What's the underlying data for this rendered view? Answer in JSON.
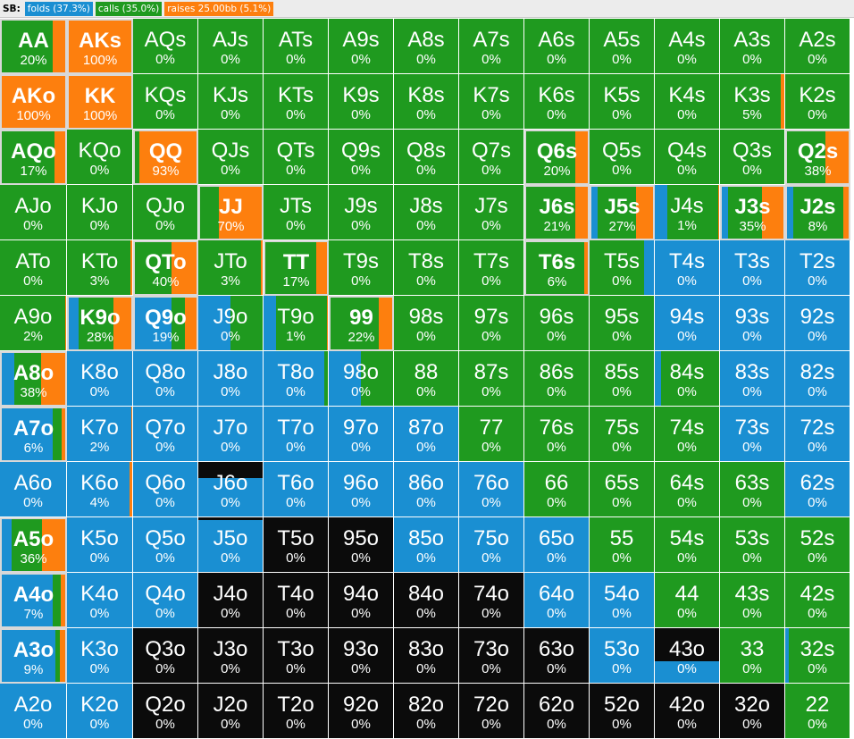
{
  "header": {
    "label": "SB:",
    "badges": [
      {
        "text": "folds (37.3%)",
        "color": "#1a8fd2"
      },
      {
        "text": "calls (35.0%)",
        "color": "#1f9a1f"
      },
      {
        "text": "raises 25.00bb (5.1%)",
        "color": "#fd7f0e"
      }
    ]
  },
  "colors": {
    "fold": "#1a8fd2",
    "call": "#1f9a1f",
    "raise": "#fd7f0e",
    "empty": "#0b0b0b"
  },
  "grid": [
    [
      {
        "h": "AA",
        "p": "20%",
        "s": "c:0.8,r:0.2",
        "b": 1
      },
      {
        "h": "AKs",
        "p": "100%",
        "s": "r:1",
        "b": 1
      },
      {
        "h": "AQs",
        "p": "0%",
        "s": "c:1"
      },
      {
        "h": "AJs",
        "p": "0%",
        "s": "c:1"
      },
      {
        "h": "ATs",
        "p": "0%",
        "s": "c:1"
      },
      {
        "h": "A9s",
        "p": "0%",
        "s": "c:1"
      },
      {
        "h": "A8s",
        "p": "0%",
        "s": "c:1"
      },
      {
        "h": "A7s",
        "p": "0%",
        "s": "c:1"
      },
      {
        "h": "A6s",
        "p": "0%",
        "s": "c:1"
      },
      {
        "h": "A5s",
        "p": "0%",
        "s": "c:1"
      },
      {
        "h": "A4s",
        "p": "0%",
        "s": "c:1"
      },
      {
        "h": "A3s",
        "p": "0%",
        "s": "c:1"
      },
      {
        "h": "A2s",
        "p": "0%",
        "s": "c:1"
      }
    ],
    [
      {
        "h": "AKo",
        "p": "100%",
        "s": "r:1",
        "b": 1
      },
      {
        "h": "KK",
        "p": "100%",
        "s": "r:1",
        "b": 1
      },
      {
        "h": "KQs",
        "p": "0%",
        "s": "c:1"
      },
      {
        "h": "KJs",
        "p": "0%",
        "s": "c:1"
      },
      {
        "h": "KTs",
        "p": "0%",
        "s": "c:1"
      },
      {
        "h": "K9s",
        "p": "0%",
        "s": "c:1"
      },
      {
        "h": "K8s",
        "p": "0%",
        "s": "c:1"
      },
      {
        "h": "K7s",
        "p": "0%",
        "s": "c:1"
      },
      {
        "h": "K6s",
        "p": "0%",
        "s": "c:1"
      },
      {
        "h": "K5s",
        "p": "0%",
        "s": "c:1"
      },
      {
        "h": "K4s",
        "p": "0%",
        "s": "c:1"
      },
      {
        "h": "K3s",
        "p": "5%",
        "s": "c:0.95,r:0.05"
      },
      {
        "h": "K2s",
        "p": "0%",
        "s": "c:1"
      }
    ],
    [
      {
        "h": "AQo",
        "p": "17%",
        "s": "c:0.83,r:0.17",
        "b": 1
      },
      {
        "h": "KQo",
        "p": "0%",
        "s": "c:1"
      },
      {
        "h": "QQ",
        "p": "93%",
        "s": "c:0.07,r:0.93",
        "b": 1
      },
      {
        "h": "QJs",
        "p": "0%",
        "s": "c:1"
      },
      {
        "h": "QTs",
        "p": "0%",
        "s": "c:1"
      },
      {
        "h": "Q9s",
        "p": "0%",
        "s": "c:1"
      },
      {
        "h": "Q8s",
        "p": "0%",
        "s": "c:1"
      },
      {
        "h": "Q7s",
        "p": "0%",
        "s": "c:1"
      },
      {
        "h": "Q6s",
        "p": "20%",
        "s": "c:0.8,r:0.2",
        "b": 1
      },
      {
        "h": "Q5s",
        "p": "0%",
        "s": "c:1"
      },
      {
        "h": "Q4s",
        "p": "0%",
        "s": "c:1"
      },
      {
        "h": "Q3s",
        "p": "0%",
        "s": "c:1"
      },
      {
        "h": "Q2s",
        "p": "38%",
        "s": "c:0.62,r:0.38",
        "b": 1
      }
    ],
    [
      {
        "h": "AJo",
        "p": "0%",
        "s": "c:1"
      },
      {
        "h": "KJo",
        "p": "0%",
        "s": "c:1"
      },
      {
        "h": "QJo",
        "p": "0%",
        "s": "c:1"
      },
      {
        "h": "JJ",
        "p": "70%",
        "s": "c:0.3,r:0.7",
        "b": 1
      },
      {
        "h": "JTs",
        "p": "0%",
        "s": "c:1"
      },
      {
        "h": "J9s",
        "p": "0%",
        "s": "c:1"
      },
      {
        "h": "J8s",
        "p": "0%",
        "s": "c:1"
      },
      {
        "h": "J7s",
        "p": "0%",
        "s": "c:1"
      },
      {
        "h": "J6s",
        "p": "21%",
        "s": "c:0.79,r:0.21",
        "b": 1
      },
      {
        "h": "J5s",
        "p": "27%",
        "s": "f:0.1,c:0.63,r:0.27",
        "b": 1
      },
      {
        "h": "J4s",
        "p": "1%",
        "s": "f:0.2,c:0.79,r:0.01"
      },
      {
        "h": "J3s",
        "p": "35%",
        "s": "f:0.1,c:0.55,r:0.35",
        "b": 1
      },
      {
        "h": "J2s",
        "p": "8%",
        "s": "f:0.1,c:0.82,r:0.08",
        "b": 1
      }
    ],
    [
      {
        "h": "ATo",
        "p": "0%",
        "s": "c:1"
      },
      {
        "h": "KTo",
        "p": "3%",
        "s": "c:0.97,r:0.03"
      },
      {
        "h": "QTo",
        "p": "40%",
        "s": "c:0.6,r:0.4",
        "b": 1
      },
      {
        "h": "JTo",
        "p": "3%",
        "s": "c:0.97,r:0.03"
      },
      {
        "h": "TT",
        "p": "17%",
        "s": "c:0.83,r:0.17",
        "b": 1
      },
      {
        "h": "T9s",
        "p": "0%",
        "s": "c:1"
      },
      {
        "h": "T8s",
        "p": "0%",
        "s": "c:1"
      },
      {
        "h": "T7s",
        "p": "0%",
        "s": "c:1"
      },
      {
        "h": "T6s",
        "p": "6%",
        "s": "c:0.94,r:0.06",
        "b": 1
      },
      {
        "h": "T5s",
        "p": "0%",
        "s": "c:0.85,f:0.15"
      },
      {
        "h": "T4s",
        "p": "0%",
        "s": "f:1"
      },
      {
        "h": "T3s",
        "p": "0%",
        "s": "f:1"
      },
      {
        "h": "T2s",
        "p": "0%",
        "s": "f:1"
      }
    ],
    [
      {
        "h": "A9o",
        "p": "2%",
        "s": "c:0.98,r:0.02"
      },
      {
        "h": "K9o",
        "p": "28%",
        "s": "f:0.15,c:0.57,r:0.28",
        "b": 1
      },
      {
        "h": "Q9o",
        "p": "19%",
        "s": "f:0.6,c:0.21,r:0.19",
        "b": 1
      },
      {
        "h": "J9o",
        "p": "0%",
        "s": "f:0.5,c:0.5"
      },
      {
        "h": "T9o",
        "p": "1%",
        "s": "f:0.2,c:0.79,r:0.01"
      },
      {
        "h": "99",
        "p": "22%",
        "s": "c:0.78,r:0.22",
        "b": 1
      },
      {
        "h": "98s",
        "p": "0%",
        "s": "c:1"
      },
      {
        "h": "97s",
        "p": "0%",
        "s": "c:1"
      },
      {
        "h": "96s",
        "p": "0%",
        "s": "c:1"
      },
      {
        "h": "95s",
        "p": "0%",
        "s": "c:1"
      },
      {
        "h": "94s",
        "p": "0%",
        "s": "f:1"
      },
      {
        "h": "93s",
        "p": "0%",
        "s": "f:1"
      },
      {
        "h": "92s",
        "p": "0%",
        "s": "f:1"
      }
    ],
    [
      {
        "h": "A8o",
        "p": "38%",
        "s": "f:0.2,c:0.42,r:0.38",
        "b": 1
      },
      {
        "h": "K8o",
        "p": "0%",
        "s": "f:1"
      },
      {
        "h": "Q8o",
        "p": "0%",
        "s": "f:1"
      },
      {
        "h": "J8o",
        "p": "0%",
        "s": "f:1"
      },
      {
        "h": "T8o",
        "p": "0%",
        "s": "f:0.95,c:0.05"
      },
      {
        "h": "98o",
        "p": "0%",
        "s": "f:0.5,c:0.5"
      },
      {
        "h": "88",
        "p": "0%",
        "s": "c:1"
      },
      {
        "h": "87s",
        "p": "0%",
        "s": "c:1"
      },
      {
        "h": "86s",
        "p": "0%",
        "s": "c:1"
      },
      {
        "h": "85s",
        "p": "0%",
        "s": "c:1"
      },
      {
        "h": "84s",
        "p": "0%",
        "s": "f:0.1,c:0.9"
      },
      {
        "h": "83s",
        "p": "0%",
        "s": "f:1"
      },
      {
        "h": "82s",
        "p": "0%",
        "s": "f:1"
      }
    ],
    [
      {
        "h": "A7o",
        "p": "6%",
        "s": "f:0.8,c:0.14,r:0.06",
        "b": 1
      },
      {
        "h": "K7o",
        "p": "2%",
        "s": "f:0.98,r:0.02"
      },
      {
        "h": "Q7o",
        "p": "0%",
        "s": "f:1"
      },
      {
        "h": "J7o",
        "p": "0%",
        "s": "f:1"
      },
      {
        "h": "T7o",
        "p": "0%",
        "s": "f:1"
      },
      {
        "h": "97o",
        "p": "0%",
        "s": "f:1"
      },
      {
        "h": "87o",
        "p": "0%",
        "s": "f:1"
      },
      {
        "h": "77",
        "p": "0%",
        "s": "c:1"
      },
      {
        "h": "76s",
        "p": "0%",
        "s": "c:1"
      },
      {
        "h": "75s",
        "p": "0%",
        "s": "c:1"
      },
      {
        "h": "74s",
        "p": "0%",
        "s": "c:1"
      },
      {
        "h": "73s",
        "p": "0%",
        "s": "f:1"
      },
      {
        "h": "72s",
        "p": "0%",
        "s": "f:1"
      }
    ],
    [
      {
        "h": "A6o",
        "p": "0%",
        "s": "f:1"
      },
      {
        "h": "K6o",
        "p": "4%",
        "s": "f:0.96,r:0.04"
      },
      {
        "h": "Q6o",
        "p": "0%",
        "s": "f:1"
      },
      {
        "h": "J6o",
        "p": "0%",
        "s": "f:0.7,t:0.3"
      },
      {
        "h": "T6o",
        "p": "0%",
        "s": "f:1"
      },
      {
        "h": "96o",
        "p": "0%",
        "s": "f:1"
      },
      {
        "h": "86o",
        "p": "0%",
        "s": "f:1"
      },
      {
        "h": "76o",
        "p": "0%",
        "s": "f:1"
      },
      {
        "h": "66",
        "p": "0%",
        "s": "c:1"
      },
      {
        "h": "65s",
        "p": "0%",
        "s": "c:1"
      },
      {
        "h": "64s",
        "p": "0%",
        "s": "c:1"
      },
      {
        "h": "63s",
        "p": "0%",
        "s": "c:1"
      },
      {
        "h": "62s",
        "p": "0%",
        "s": "f:1"
      }
    ],
    [
      {
        "h": "A5o",
        "p": "36%",
        "s": "f:0.15,c:0.49,r:0.36",
        "b": 1
      },
      {
        "h": "K5o",
        "p": "0%",
        "s": "f:1"
      },
      {
        "h": "Q5o",
        "p": "0%",
        "s": "f:1"
      },
      {
        "h": "J5o",
        "p": "0%",
        "s": "f:0.95,t:0.05"
      },
      {
        "h": "T5o",
        "p": "0%",
        "s": "e:1"
      },
      {
        "h": "95o",
        "p": "0%",
        "s": "e:1"
      },
      {
        "h": "85o",
        "p": "0%",
        "s": "f:1"
      },
      {
        "h": "75o",
        "p": "0%",
        "s": "f:1"
      },
      {
        "h": "65o",
        "p": "0%",
        "s": "f:1"
      },
      {
        "h": "55",
        "p": "0%",
        "s": "c:1"
      },
      {
        "h": "54s",
        "p": "0%",
        "s": "c:1"
      },
      {
        "h": "53s",
        "p": "0%",
        "s": "c:1"
      },
      {
        "h": "52s",
        "p": "0%",
        "s": "c:1"
      }
    ],
    [
      {
        "h": "A4o",
        "p": "7%",
        "s": "f:0.8,c:0.13,r:0.07",
        "b": 1
      },
      {
        "h": "K4o",
        "p": "0%",
        "s": "f:1"
      },
      {
        "h": "Q4o",
        "p": "0%",
        "s": "f:1"
      },
      {
        "h": "J4o",
        "p": "0%",
        "s": "e:1"
      },
      {
        "h": "T4o",
        "p": "0%",
        "s": "e:1"
      },
      {
        "h": "94o",
        "p": "0%",
        "s": "e:1"
      },
      {
        "h": "84o",
        "p": "0%",
        "s": "e:1"
      },
      {
        "h": "74o",
        "p": "0%",
        "s": "e:1"
      },
      {
        "h": "64o",
        "p": "0%",
        "s": "f:1"
      },
      {
        "h": "54o",
        "p": "0%",
        "s": "f:1"
      },
      {
        "h": "44",
        "p": "0%",
        "s": "c:1"
      },
      {
        "h": "43s",
        "p": "0%",
        "s": "c:1"
      },
      {
        "h": "42s",
        "p": "0%",
        "s": "c:1"
      }
    ],
    [
      {
        "h": "A3o",
        "p": "9%",
        "s": "f:0.85,c:0.06,r:0.09",
        "b": 1
      },
      {
        "h": "K3o",
        "p": "0%",
        "s": "f:1"
      },
      {
        "h": "Q3o",
        "p": "0%",
        "s": "e:1"
      },
      {
        "h": "J3o",
        "p": "0%",
        "s": "e:1"
      },
      {
        "h": "T3o",
        "p": "0%",
        "s": "e:1"
      },
      {
        "h": "93o",
        "p": "0%",
        "s": "e:1"
      },
      {
        "h": "83o",
        "p": "0%",
        "s": "e:1"
      },
      {
        "h": "73o",
        "p": "0%",
        "s": "e:1"
      },
      {
        "h": "63o",
        "p": "0%",
        "s": "e:1"
      },
      {
        "h": "53o",
        "p": "0%",
        "s": "f:1"
      },
      {
        "h": "43o",
        "p": "0%",
        "s": "f:0.4,t:0.6"
      },
      {
        "h": "33",
        "p": "0%",
        "s": "c:1"
      },
      {
        "h": "32s",
        "p": "0%",
        "s": "f:0.05,c:0.95"
      }
    ],
    [
      {
        "h": "A2o",
        "p": "0%",
        "s": "f:1"
      },
      {
        "h": "K2o",
        "p": "0%",
        "s": "f:1"
      },
      {
        "h": "Q2o",
        "p": "0%",
        "s": "e:1"
      },
      {
        "h": "J2o",
        "p": "0%",
        "s": "e:1"
      },
      {
        "h": "T2o",
        "p": "0%",
        "s": "e:1"
      },
      {
        "h": "92o",
        "p": "0%",
        "s": "e:1"
      },
      {
        "h": "82o",
        "p": "0%",
        "s": "e:1"
      },
      {
        "h": "72o",
        "p": "0%",
        "s": "e:1"
      },
      {
        "h": "62o",
        "p": "0%",
        "s": "e:1"
      },
      {
        "h": "52o",
        "p": "0%",
        "s": "e:1"
      },
      {
        "h": "42o",
        "p": "0%",
        "s": "e:1"
      },
      {
        "h": "32o",
        "p": "0%",
        "s": "e:1"
      },
      {
        "h": "22",
        "p": "0%",
        "s": "c:1"
      }
    ]
  ]
}
